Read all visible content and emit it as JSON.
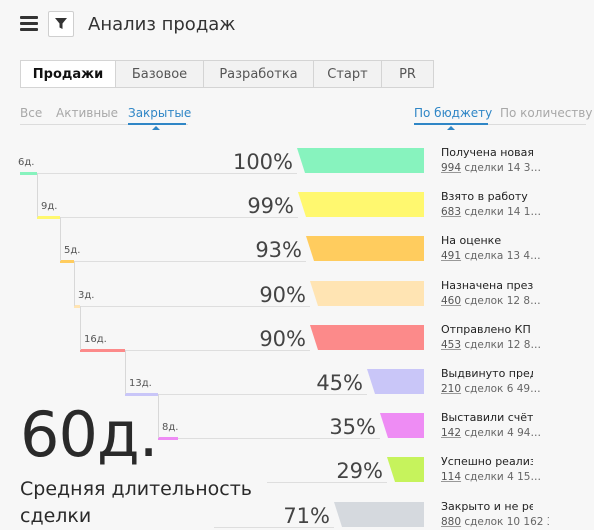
{
  "header": {
    "title": "Анализ продаж",
    "menu_icon": "hamburger-menu-icon",
    "filter_icon": "funnel-filter-icon"
  },
  "tabs": [
    {
      "label": "Продажи",
      "active": true
    },
    {
      "label": "Базовое",
      "active": false
    },
    {
      "label": "Разработка",
      "active": false
    },
    {
      "label": "Старт",
      "active": false
    },
    {
      "label": "PR",
      "active": false
    }
  ],
  "status_filters": [
    {
      "label": "Все",
      "active": false
    },
    {
      "label": "Активные",
      "active": false
    },
    {
      "label": "Закрытые",
      "active": true
    }
  ],
  "metric_filters": [
    {
      "label": "По бюджету",
      "active": true
    },
    {
      "label": "По количеству",
      "active": false
    }
  ],
  "stages": [
    {
      "days": "6д.",
      "percent": "100%",
      "percent_value": 100,
      "title": "Получена новая",
      "count": "994",
      "detail": " сделки 14 3…",
      "color": "#87f3be"
    },
    {
      "days": "9д.",
      "percent": "99%",
      "percent_value": 99,
      "title": "Взято в работу",
      "count": "683",
      "detail": " сделки 14 1…",
      "color": "#fff86f"
    },
    {
      "days": "5д.",
      "percent": "93%",
      "percent_value": 93,
      "title": "На оценке",
      "count": "491",
      "detail": " сделка 13 4…",
      "color": "#ffcc5e"
    },
    {
      "days": "3д.",
      "percent": "90%",
      "percent_value": 90,
      "title": "Назначена през",
      "count": "460",
      "detail": " сделок 12 8…",
      "color": "#ffe4b3"
    },
    {
      "days": "16д.",
      "percent": "90%",
      "percent_value": 90,
      "title": "Отправлено КП",
      "count": "453",
      "detail": " сделки 12 8…",
      "color": "#fc8a8a"
    },
    {
      "days": "13д.",
      "percent": "45%",
      "percent_value": 45,
      "title": "Выдвинуто пред",
      "count": "210",
      "detail": " сделок 6 49…",
      "color": "#c9c6f8"
    },
    {
      "days": "8д.",
      "percent": "35%",
      "percent_value": 35,
      "title": "Выставили счёт",
      "count": "142",
      "detail": " сделки 4 94…",
      "color": "#ee8cf4"
    },
    {
      "days": "",
      "percent": "29%",
      "percent_value": 29,
      "title": "Успешно реализ",
      "count": "114",
      "detail": " сделки 4 15…",
      "color": "#c6f35c"
    },
    {
      "days": "",
      "percent": "71%",
      "percent_value": 71,
      "title": "Закрыто и не ре",
      "count": "880",
      "detail": " сделок 10 162 3…",
      "color": "#d5d9de"
    }
  ],
  "summary": {
    "value": "60д.",
    "caption": "Средняя длительность сделки"
  }
}
